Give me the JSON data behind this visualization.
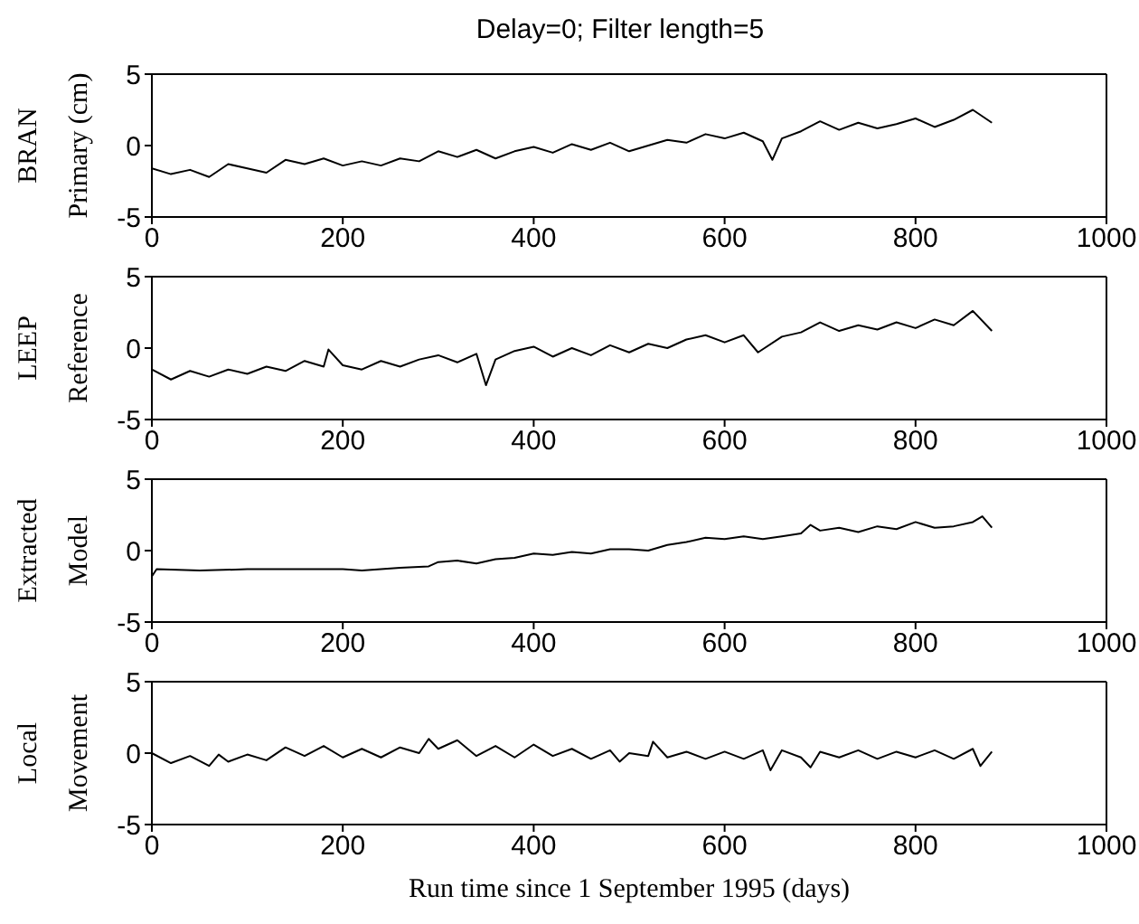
{
  "chart_data": [
    {
      "type": "line",
      "title": "Delay=0; Filter length=5",
      "ylabel": "BRAN\nPrimary (cm)",
      "color": "#000000",
      "xlim": [
        0,
        1000
      ],
      "xticks": [
        0,
        200,
        400,
        600,
        800,
        1000
      ],
      "ylim": [
        -5,
        5
      ],
      "yticks": [
        -5,
        0,
        5
      ],
      "x": [
        0,
        20,
        40,
        60,
        80,
        100,
        120,
        140,
        160,
        180,
        200,
        220,
        240,
        260,
        280,
        300,
        320,
        340,
        360,
        380,
        400,
        420,
        440,
        460,
        480,
        500,
        520,
        540,
        560,
        580,
        600,
        620,
        640,
        650,
        660,
        680,
        700,
        720,
        740,
        760,
        780,
        800,
        820,
        840,
        860,
        880
      ],
      "values": [
        -1.6,
        -2.0,
        -1.7,
        -2.2,
        -1.3,
        -1.6,
        -1.9,
        -1.0,
        -1.3,
        -0.9,
        -1.4,
        -1.1,
        -1.4,
        -0.9,
        -1.1,
        -0.4,
        -0.8,
        -0.3,
        -0.9,
        -0.4,
        -0.1,
        -0.5,
        0.1,
        -0.3,
        0.2,
        -0.4,
        0.0,
        0.4,
        0.2,
        0.8,
        0.5,
        0.9,
        0.3,
        -1.0,
        0.5,
        1.0,
        1.7,
        1.1,
        1.6,
        1.2,
        1.5,
        1.9,
        1.3,
        1.8,
        2.5,
        1.6
      ]
    },
    {
      "type": "line",
      "ylabel": "LEEP\nReference",
      "color": "#000000",
      "xlim": [
        0,
        1000
      ],
      "xticks": [
        0,
        200,
        400,
        600,
        800,
        1000
      ],
      "ylim": [
        -5,
        5
      ],
      "yticks": [
        -5,
        0,
        5
      ],
      "x": [
        0,
        20,
        40,
        60,
        80,
        100,
        120,
        140,
        160,
        180,
        185,
        200,
        220,
        240,
        260,
        280,
        300,
        320,
        340,
        350,
        360,
        380,
        400,
        420,
        440,
        460,
        480,
        500,
        520,
        540,
        560,
        580,
        600,
        620,
        635,
        660,
        680,
        700,
        720,
        740,
        760,
        780,
        800,
        820,
        840,
        860,
        880
      ],
      "values": [
        -1.5,
        -2.2,
        -1.6,
        -2.0,
        -1.5,
        -1.8,
        -1.3,
        -1.6,
        -0.9,
        -1.3,
        -0.1,
        -1.2,
        -1.5,
        -0.9,
        -1.3,
        -0.8,
        -0.5,
        -1.0,
        -0.4,
        -2.6,
        -0.8,
        -0.2,
        0.1,
        -0.6,
        0.0,
        -0.5,
        0.2,
        -0.3,
        0.3,
        0.0,
        0.6,
        0.9,
        0.4,
        0.9,
        -0.3,
        0.8,
        1.1,
        1.8,
        1.2,
        1.6,
        1.3,
        1.8,
        1.4,
        2.0,
        1.6,
        2.6,
        1.2
      ]
    },
    {
      "type": "line",
      "ylabel": "Extracted\nModel",
      "color": "#000000",
      "xlim": [
        0,
        1000
      ],
      "xticks": [
        0,
        200,
        400,
        600,
        800,
        1000
      ],
      "ylim": [
        -5,
        5
      ],
      "yticks": [
        -5,
        0,
        5
      ],
      "x": [
        0,
        5,
        50,
        100,
        150,
        200,
        220,
        260,
        290,
        300,
        320,
        340,
        360,
        380,
        400,
        420,
        440,
        460,
        480,
        500,
        520,
        540,
        560,
        580,
        600,
        620,
        640,
        660,
        680,
        690,
        700,
        720,
        740,
        760,
        780,
        800,
        820,
        840,
        860,
        870,
        880
      ],
      "values": [
        -1.8,
        -1.3,
        -1.4,
        -1.3,
        -1.3,
        -1.3,
        -1.4,
        -1.2,
        -1.1,
        -0.8,
        -0.7,
        -0.9,
        -0.6,
        -0.5,
        -0.2,
        -0.3,
        -0.1,
        -0.2,
        0.1,
        0.1,
        0.0,
        0.4,
        0.6,
        0.9,
        0.8,
        1.0,
        0.8,
        1.0,
        1.2,
        1.8,
        1.4,
        1.6,
        1.3,
        1.7,
        1.5,
        2.0,
        1.6,
        1.7,
        2.0,
        2.4,
        1.6
      ]
    },
    {
      "type": "line",
      "ylabel": "Local\nMovement",
      "xlabel": "Run time since 1 September 1995 (days)",
      "color": "#000000",
      "xlim": [
        0,
        1000
      ],
      "xticks": [
        0,
        200,
        400,
        600,
        800,
        1000
      ],
      "ylim": [
        -5,
        5
      ],
      "yticks": [
        -5,
        0,
        5
      ],
      "x": [
        0,
        20,
        40,
        60,
        70,
        80,
        100,
        120,
        140,
        160,
        180,
        200,
        220,
        240,
        260,
        280,
        290,
        300,
        320,
        340,
        360,
        380,
        400,
        420,
        440,
        460,
        480,
        490,
        500,
        520,
        525,
        540,
        560,
        580,
        600,
        620,
        640,
        648,
        660,
        680,
        690,
        700,
        720,
        740,
        760,
        780,
        800,
        820,
        840,
        860,
        868,
        880
      ],
      "values": [
        0.0,
        -0.7,
        -0.2,
        -0.9,
        -0.1,
        -0.6,
        -0.1,
        -0.5,
        0.4,
        -0.2,
        0.5,
        -0.3,
        0.3,
        -0.3,
        0.4,
        0.0,
        1.0,
        0.3,
        0.9,
        -0.2,
        0.5,
        -0.3,
        0.6,
        -0.2,
        0.3,
        -0.4,
        0.2,
        -0.6,
        0.0,
        -0.2,
        0.8,
        -0.3,
        0.1,
        -0.4,
        0.1,
        -0.4,
        0.2,
        -1.2,
        0.2,
        -0.3,
        -1.0,
        0.1,
        -0.3,
        0.2,
        -0.4,
        0.1,
        -0.3,
        0.2,
        -0.4,
        0.3,
        -0.9,
        0.1
      ]
    }
  ]
}
